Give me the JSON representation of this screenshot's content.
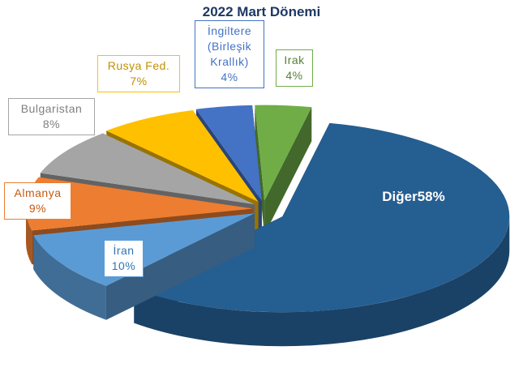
{
  "chart_data": {
    "type": "pie",
    "title": "2022 Mart Dönemi",
    "categories": [
      "Diğer",
      "İran",
      "Almanya",
      "Bulgaristan",
      "Rusya Fed.",
      "İngiltere (Birleşik Krallık)",
      "Irak"
    ],
    "values": [
      58,
      10,
      9,
      8,
      7,
      4,
      4
    ],
    "value_labels": [
      "58%",
      "10%",
      "9%",
      "8%",
      "7%",
      "4%",
      "4%"
    ],
    "colors": [
      "#255e91",
      "#5b9bd5",
      "#ed7d31",
      "#a5a5a5",
      "#ffc000",
      "#4472c4",
      "#70ad47"
    ]
  }
}
